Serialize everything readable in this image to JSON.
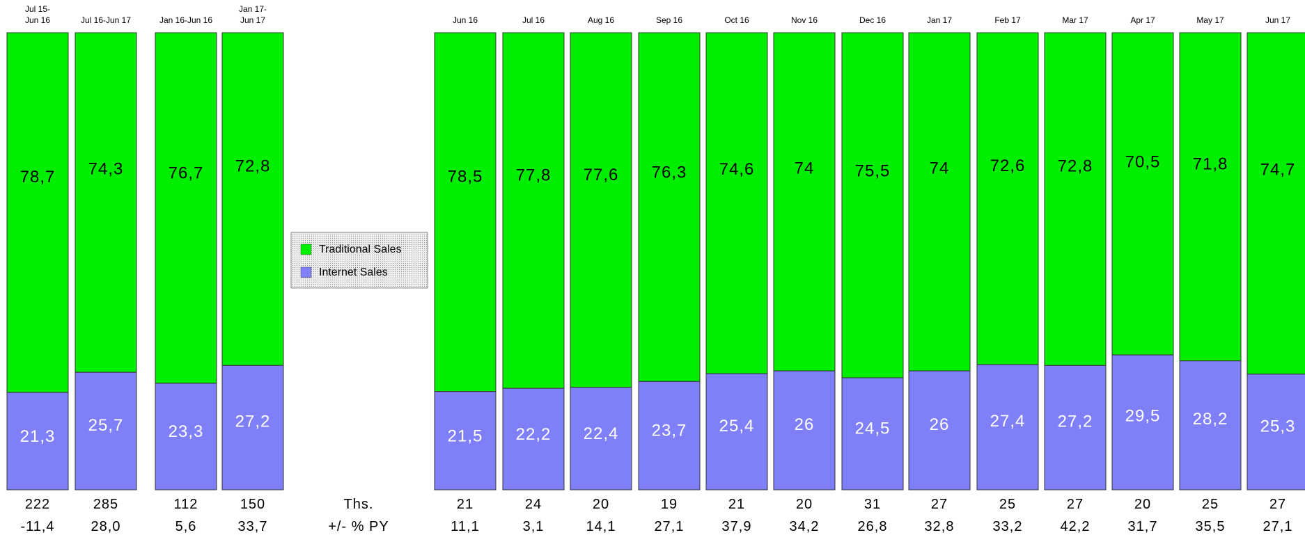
{
  "chart_data": {
    "type": "bar",
    "stacked": true,
    "percent_stacked": true,
    "legend": {
      "position": "center-left",
      "entries": [
        "Traditional Sales",
        "Internet Sales"
      ]
    },
    "series": [
      {
        "name": "Traditional Sales",
        "color": "#00ee00"
      },
      {
        "name": "Internet Sales",
        "color": "#7f7ff7"
      }
    ],
    "row_labels": {
      "thousands": "Ths.",
      "change": "+/- % PY"
    },
    "groups": [
      {
        "categories": [
          [
            "Jul 15-",
            "Jun 16"
          ],
          [
            "Jul 16-Jun 17"
          ]
        ],
        "traditional": [
          "78,7",
          "74,3"
        ],
        "internet": [
          "21,3",
          "25,7"
        ],
        "thousands": [
          "222",
          "285"
        ],
        "change_pct": [
          "-11,4",
          "28,0"
        ]
      },
      {
        "categories": [
          [
            "Jan 16-Jun 16"
          ],
          [
            "Jan 17-",
            "Jun 17"
          ]
        ],
        "traditional": [
          "76,7",
          "72,8"
        ],
        "internet": [
          "23,3",
          "27,2"
        ],
        "thousands": [
          "112",
          "150"
        ],
        "change_pct": [
          "5,6",
          "33,7"
        ]
      },
      {
        "categories": [
          [
            "Jun 16"
          ],
          [
            "Jul 16"
          ],
          [
            "Aug 16"
          ],
          [
            "Sep 16"
          ],
          [
            "Oct 16"
          ],
          [
            "Nov 16"
          ],
          [
            "Dec 16"
          ],
          [
            "Jan 17"
          ],
          [
            "Feb 17"
          ],
          [
            "Mar 17"
          ],
          [
            "Apr 17"
          ],
          [
            "May 17"
          ],
          [
            "Jun 17"
          ]
        ],
        "traditional": [
          "78,5",
          "77,8",
          "77,6",
          "76,3",
          "74,6",
          "74",
          "75,5",
          "74",
          "72,6",
          "72,8",
          "70,5",
          "71,8",
          "74,7"
        ],
        "internet": [
          "21,5",
          "22,2",
          "22,4",
          "23,7",
          "25,4",
          "26",
          "24,5",
          "26",
          "27,4",
          "27,2",
          "29,5",
          "28,2",
          "25,3"
        ],
        "thousands": [
          "21",
          "24",
          "20",
          "19",
          "21",
          "20",
          "31",
          "27",
          "25",
          "27",
          "20",
          "25",
          "27"
        ],
        "change_pct": [
          "11,1",
          "3,1",
          "14,1",
          "27,1",
          "37,9",
          "34,2",
          "26,8",
          "32,8",
          "33,2",
          "42,2",
          "31,7",
          "35,5",
          "27,1"
        ]
      }
    ]
  }
}
